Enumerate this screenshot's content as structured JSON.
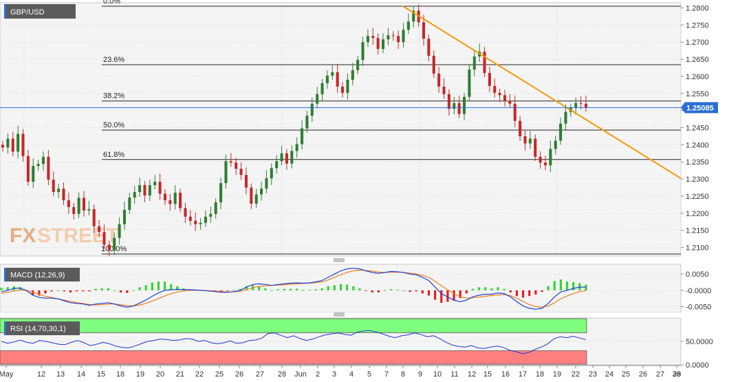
{
  "chart_data": {
    "type": "candlestick",
    "symbol": "GBP/USD",
    "last_price": "1.25085",
    "x_labels": [
      "May",
      "12",
      "13",
      "14",
      "15",
      "18",
      "19",
      "20",
      "21",
      "22",
      "25",
      "26",
      "27",
      "28",
      "Jun",
      "2",
      "3",
      "4",
      "5",
      "7",
      "8",
      "9",
      "10",
      "11",
      "12",
      "15",
      "16",
      "17",
      "18",
      "19",
      "22",
      "23",
      "24",
      "25",
      "26",
      "27",
      "28",
      "29",
      "30"
    ],
    "y_ticks": [
      "1.2800",
      "1.2750",
      "1.2700",
      "1.2650",
      "1.2600",
      "1.2550",
      "1.2500",
      "1.2450",
      "1.2400",
      "1.2350",
      "1.2300",
      "1.2250",
      "1.2200",
      "1.2150",
      "1.2100"
    ],
    "ylim": [
      1.2075,
      1.2815
    ],
    "fib_levels": [
      {
        "label": "0.0%",
        "value": 1.2805
      },
      {
        "label": "23.6%",
        "value": 1.2634
      },
      {
        "label": "38.2%",
        "value": 1.2528
      },
      {
        "label": "50.0%",
        "value": 1.2443
      },
      {
        "label": "61.8%",
        "value": 1.2357
      },
      {
        "label": "100.0%",
        "value": 1.2081
      }
    ],
    "trendline": {
      "from_date": "9",
      "from_value": 1.2805,
      "to_date": "30",
      "to_value": 1.2302
    },
    "closes": [
      1.2392,
      1.2418,
      1.238,
      1.2432,
      1.2367,
      1.2292,
      1.2338,
      1.2344,
      1.2365,
      1.2298,
      1.2262,
      1.2272,
      1.2238,
      1.2218,
      1.2198,
      1.2245,
      1.2208,
      1.2212,
      1.2162,
      1.2145,
      1.2108,
      1.2092,
      1.2128,
      1.2168,
      1.221,
      1.2246,
      1.2262,
      1.2282,
      1.2252,
      1.2282,
      1.2292,
      1.2257,
      1.2238,
      1.2227,
      1.226,
      1.2215,
      1.219,
      1.2178,
      1.2168,
      1.2172,
      1.219,
      1.2198,
      1.2232,
      1.2288,
      1.2352,
      1.2348,
      1.233,
      1.2312,
      1.2275,
      1.2228,
      1.2255,
      1.2272,
      1.2302,
      1.2332,
      1.2352,
      1.2375,
      1.2345,
      1.2382,
      1.2402,
      1.2448,
      1.2485,
      1.252,
      1.2548,
      1.258,
      1.2602,
      1.2612,
      1.257,
      1.2552,
      1.259,
      1.2618,
      1.2648,
      1.27,
      1.2718,
      1.2712,
      1.268,
      1.2708,
      1.272,
      1.2718,
      1.27,
      1.2736,
      1.276,
      1.2792,
      1.2758,
      1.271,
      1.266,
      1.2608,
      1.257,
      1.2548,
      1.2505,
      1.2522,
      1.249,
      1.254,
      1.262,
      1.2658,
      1.2672,
      1.261,
      1.2572,
      1.2552,
      1.2545,
      1.2528,
      1.252,
      1.247,
      1.2425,
      1.2404,
      1.2418,
      1.2365,
      1.2348,
      1.234,
      1.2388,
      1.2412,
      1.2462,
      1.2496,
      1.2508,
      1.2522,
      1.252,
      1.2508
    ],
    "macd": {
      "title": "MACD (12,26,9)",
      "ticks": [
        "0.0050",
        "-0.0000",
        "-0.0050"
      ],
      "ylim": [
        -0.0068,
        0.008
      ],
      "macd_line": [
        -0.0005,
        0.0,
        0.0006,
        0.0007,
        -0.0001,
        -0.0015,
        -0.0022,
        -0.0024,
        -0.0024,
        -0.0026,
        -0.0032,
        -0.0038,
        -0.004,
        -0.0042,
        -0.0046,
        -0.0042,
        -0.004,
        -0.0038,
        -0.0042,
        -0.0048,
        -0.0052,
        -0.0048,
        -0.0039,
        -0.003,
        -0.0018,
        -0.0008,
        0.0,
        0.0002,
        0.0003,
        0.0002,
        0.0002,
        0.0001,
        0.0,
        -0.0002,
        -0.0004,
        -0.0006,
        -0.0006,
        -0.0004,
        0.0,
        0.001,
        0.0018,
        0.002,
        0.0018,
        0.0015,
        0.0018,
        0.002,
        0.0022,
        0.0023,
        0.0022,
        0.0023,
        0.0026,
        0.003,
        0.004,
        0.005,
        0.006,
        0.0066,
        0.0068,
        0.0066,
        0.006,
        0.0055,
        0.0052,
        0.0055,
        0.0058,
        0.0057,
        0.0055,
        0.005,
        0.0048,
        0.004,
        0.003,
        0.001,
        -0.001,
        -0.002,
        -0.003,
        -0.0035,
        -0.003,
        -0.002,
        -0.0015,
        -0.0012,
        -0.0012,
        -0.0008,
        -0.001,
        -0.002,
        -0.0035,
        -0.0048,
        -0.0055,
        -0.0058,
        -0.0055,
        -0.004,
        -0.002,
        -0.0005,
        0.0,
        0.0006,
        0.001,
        0.001
      ],
      "signal_line": [
        -0.001,
        -0.0006,
        -0.0002,
        0.0001,
        0.0,
        -0.0006,
        -0.0012,
        -0.0018,
        -0.0022,
        -0.0026,
        -0.003,
        -0.0034,
        -0.0038,
        -0.004,
        -0.0044,
        -0.0045,
        -0.0044,
        -0.0042,
        -0.0042,
        -0.0044,
        -0.0047,
        -0.0048,
        -0.0045,
        -0.004,
        -0.0033,
        -0.0025,
        -0.0017,
        -0.001,
        -0.0005,
        -0.0002,
        0.0,
        0.0,
        0.0,
        -0.0001,
        -0.0002,
        -0.0004,
        -0.0005,
        -0.0005,
        -0.0003,
        0.0002,
        0.0008,
        0.0012,
        0.0014,
        0.0015,
        0.0016,
        0.0017,
        0.0019,
        0.002,
        0.0021,
        0.0022,
        0.0024,
        0.0026,
        0.0032,
        0.004,
        0.0048,
        0.0055,
        0.006,
        0.0062,
        0.0061,
        0.0059,
        0.0056,
        0.0055,
        0.0056,
        0.0056,
        0.0055,
        0.0053,
        0.005,
        0.0046,
        0.004,
        0.0028,
        0.0014,
        0.0002,
        -0.001,
        -0.002,
        -0.0024,
        -0.0023,
        -0.0021,
        -0.0018,
        -0.0016,
        -0.0014,
        -0.0013,
        -0.0016,
        -0.0024,
        -0.0034,
        -0.0044,
        -0.005,
        -0.0052,
        -0.0048,
        -0.0038,
        -0.0026,
        -0.0017,
        -0.001,
        -0.0004,
        -0.0001
      ]
    },
    "rsi": {
      "title": "RSI (14,70,30,1)",
      "ticks": [
        "50.0000",
        "0.0000"
      ],
      "ylim": [
        0,
        100
      ],
      "overbought": 70,
      "oversold": 30,
      "values": [
        50,
        46,
        49,
        53,
        48,
        46,
        52,
        50,
        47,
        44,
        43,
        48,
        52,
        47,
        41,
        44,
        48,
        45,
        40,
        37,
        36,
        40,
        45,
        50,
        52,
        55,
        54,
        52,
        53,
        56,
        55,
        50,
        52,
        47,
        45,
        47,
        51,
        46,
        47,
        52,
        53,
        57,
        67,
        68,
        63,
        58,
        62,
        56,
        52,
        55,
        60,
        64,
        66,
        68,
        65,
        63,
        70,
        72,
        73,
        70,
        66,
        61,
        58,
        62,
        64,
        68,
        65,
        60,
        62,
        56,
        48,
        42,
        39,
        38,
        41,
        36,
        35,
        38,
        40,
        37,
        31,
        28,
        24,
        26,
        33,
        38,
        45,
        56,
        60,
        58,
        61,
        57,
        54
      ]
    },
    "watermark": "FXSTREET",
    "colors": {
      "bull": "#2e7d32",
      "bear": "#c62828",
      "trendline": "#f59a0c",
      "fib": "#222222",
      "macd": "#1f3fd1",
      "signal": "#f07c1e",
      "hist_pos": "#34d634",
      "hist_neg": "#e02020",
      "rsi_line": "#2233cc",
      "rsi_ob": "#7fff7f",
      "rsi_os": "#ff7f7f",
      "price_tag": "#2a6fd4"
    }
  }
}
